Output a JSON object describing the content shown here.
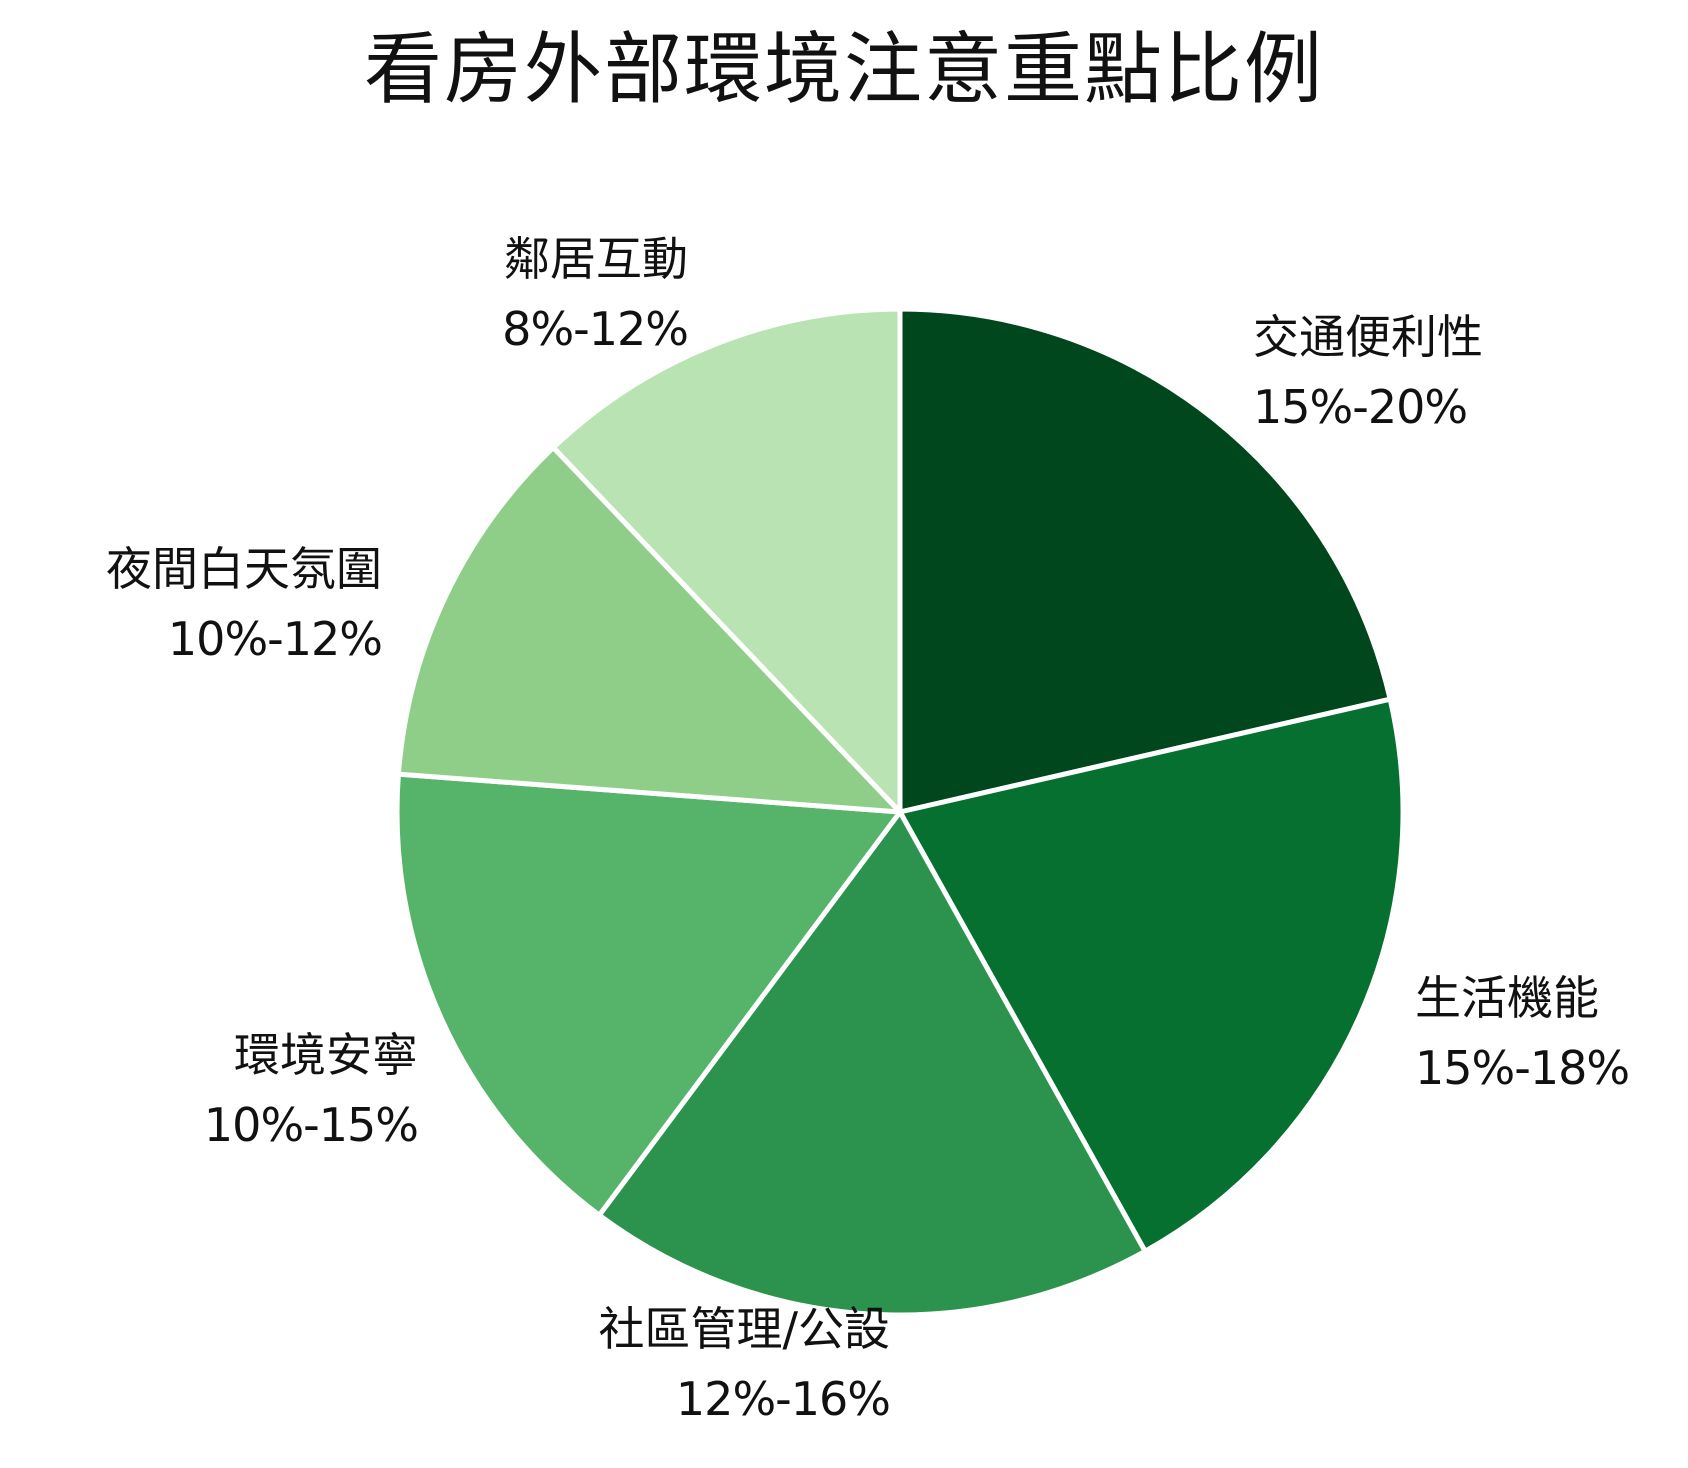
{
  "chart_data": {
    "type": "pie",
    "title": "看房外部環境注意重點比例",
    "start_angle_deg": 0,
    "direction": "clockwise",
    "slices": [
      {
        "name": "交通便利性",
        "label": "15%-20%",
        "value": 21.4,
        "color": "#00471e"
      },
      {
        "name": "生活機能",
        "label": "15%-18%",
        "value": 20.5,
        "color": "#057030"
      },
      {
        "name": "社區管理/公設",
        "label": "12%-16%",
        "value": 18.3,
        "color": "#2b934d"
      },
      {
        "name": "環境安寧",
        "label": "10%-15%",
        "value": 16.0,
        "color": "#55b46a"
      },
      {
        "name": "夜間白天氛圍",
        "label": "10%-12%",
        "value": 11.7,
        "color": "#8ece89"
      },
      {
        "name": "鄰居互動",
        "label": "8%-12%",
        "value": 12.1,
        "color": "#b9e3b3"
      }
    ]
  }
}
